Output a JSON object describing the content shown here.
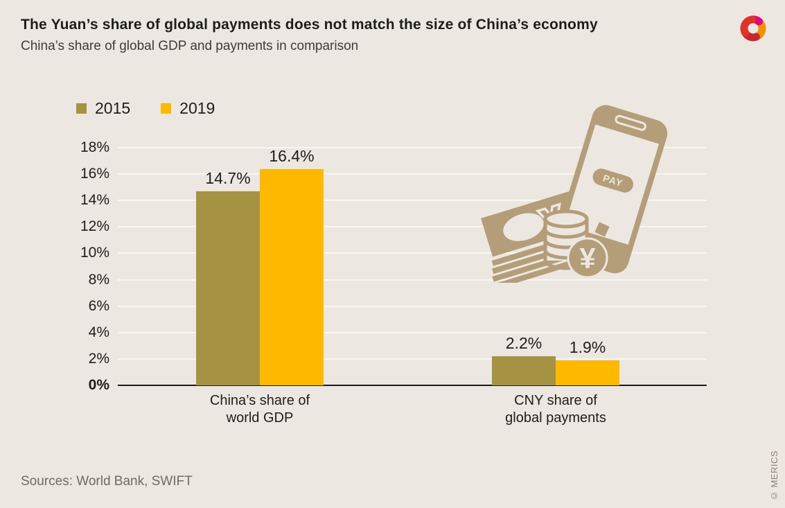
{
  "header": {
    "title": "The Yuan’s share of global payments does not match the size of China’s economy",
    "subtitle": "China’s share of global GDP and payments in comparison"
  },
  "chart_data": {
    "type": "bar",
    "title": "China’s share of global GDP and payments in comparison",
    "categories": [
      "China’s share of\nworld GDP",
      "CNY share of\nglobal payments"
    ],
    "series": [
      {
        "name": "2015",
        "color": "#a59343",
        "values": [
          14.7,
          2.2
        ]
      },
      {
        "name": "2019",
        "color": "#fcb900",
        "values": [
          16.4,
          1.9
        ]
      }
    ],
    "value_labels": [
      [
        "14.7%",
        "2.2%"
      ],
      [
        "16.4%",
        "1.9%"
      ]
    ],
    "xlabel": "",
    "ylabel": "",
    "ylim": [
      0,
      18
    ],
    "ytick_step": 2,
    "ytick_suffix": "%",
    "grid": true,
    "legend_position": "top-left"
  },
  "illustration": {
    "pay_label": "PAY",
    "note_currency_symbol": "¥",
    "coin_currency_symbol": "¥"
  },
  "footer": {
    "sources": "Sources: World Bank, SWIFT",
    "copyright": "© MERICS"
  },
  "colors": {
    "background": "#ece7e0",
    "bar_2015": "#a59343",
    "bar_2019": "#fcb900",
    "illustration_tan": "#b49d79",
    "gridline": "#f9f6f1",
    "axis_line": "#1a1a1a",
    "text_dark": "#1d1d1b",
    "text_muted": "#6f6a63",
    "logo_red": "#dd342b",
    "logo_dark_red": "#c22832",
    "logo_orange": "#f29100",
    "logo_pink": "#e5017e"
  }
}
